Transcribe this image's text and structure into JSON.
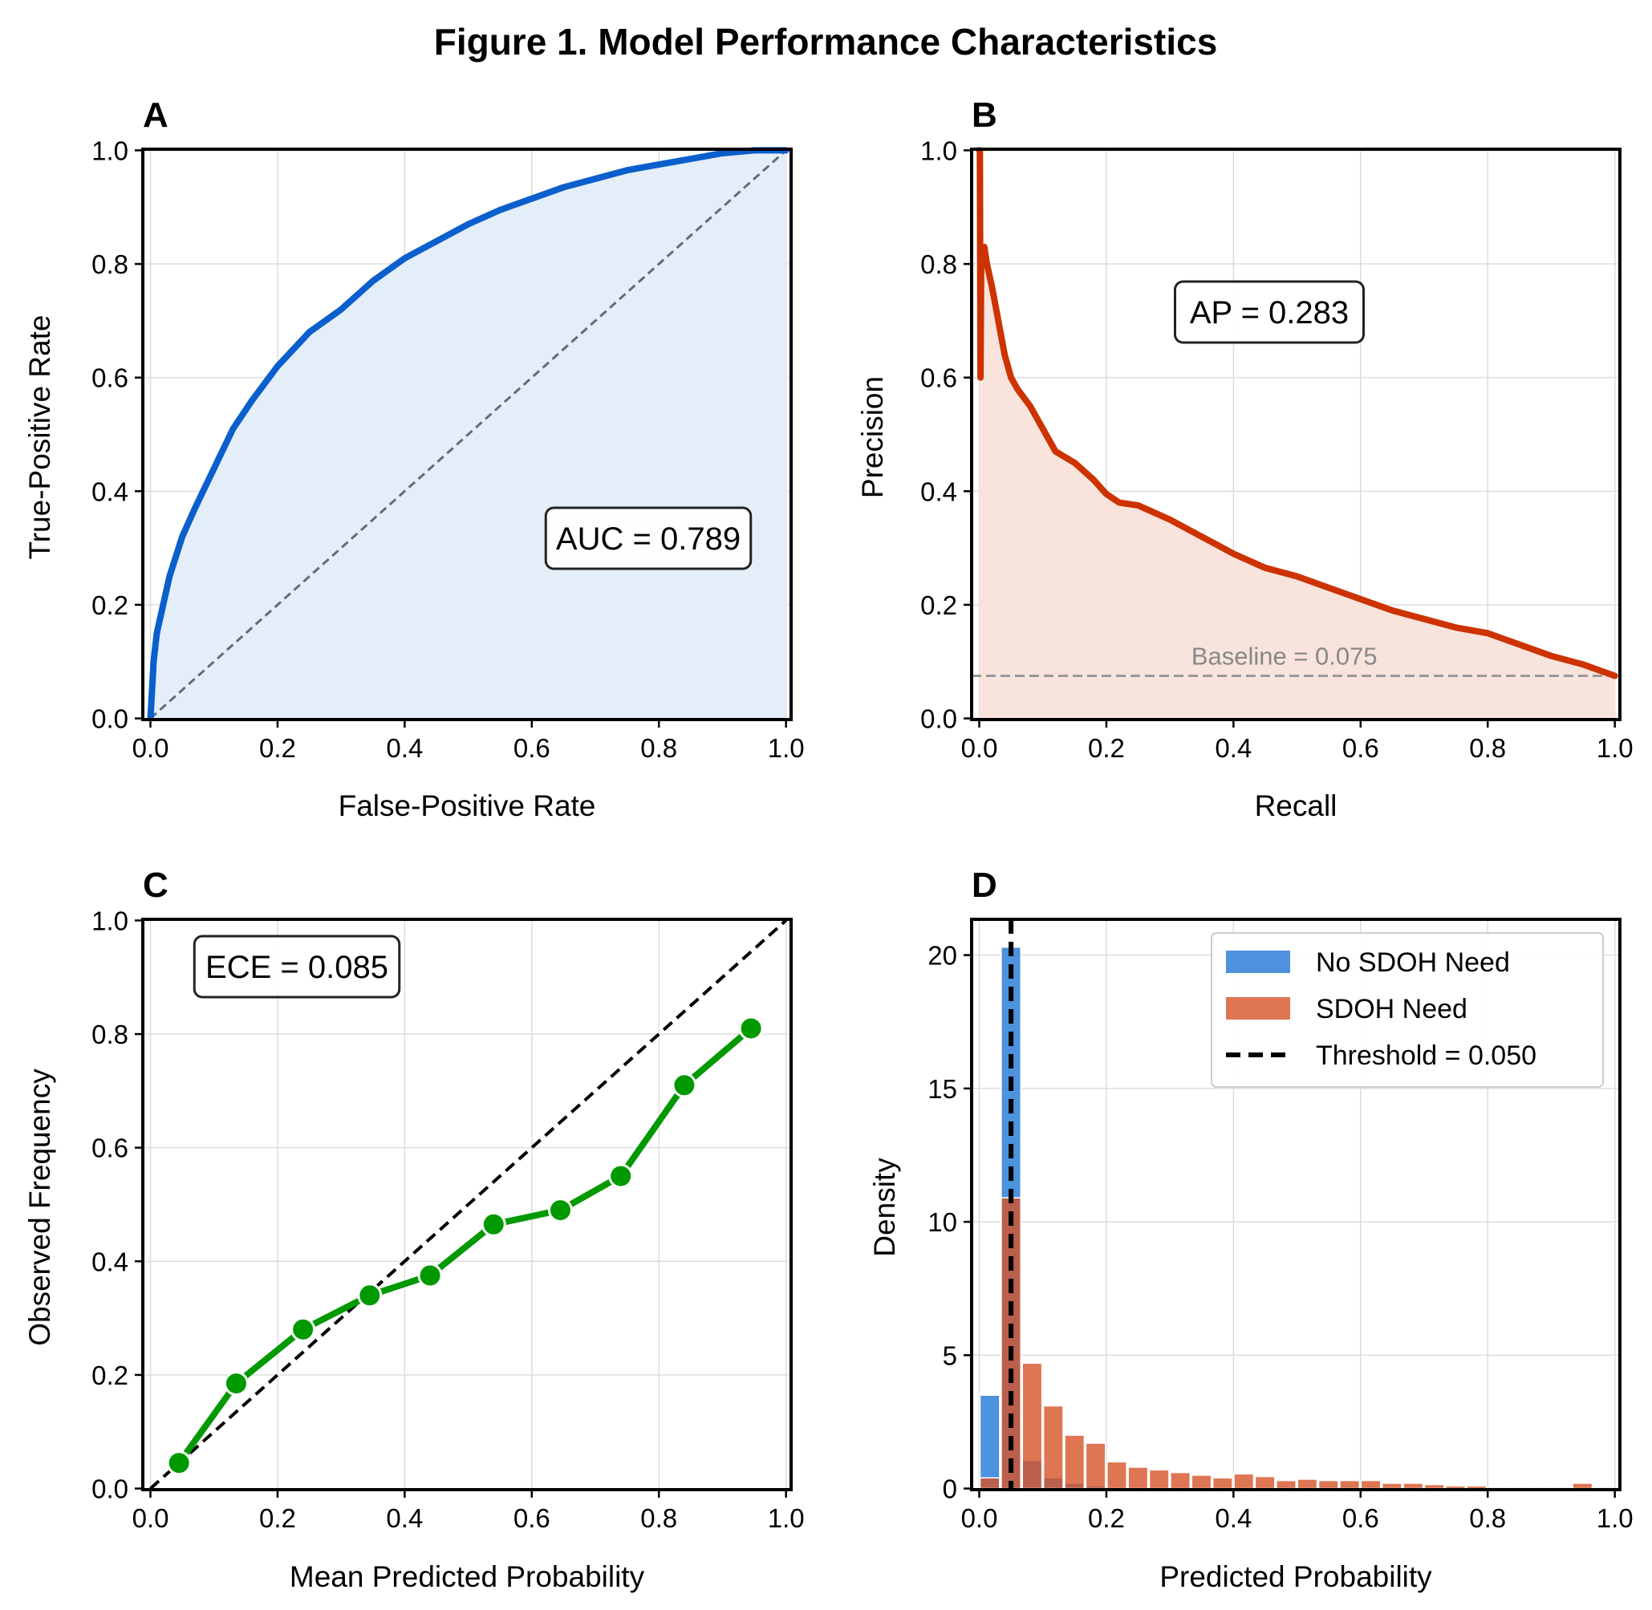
{
  "figure": {
    "title": "Figure 1. Model Performance Characteristics"
  },
  "chart_data": [
    {
      "panel": "A",
      "type": "line",
      "xlabel": "False-Positive Rate",
      "ylabel": "True-Positive Rate",
      "xlim": [
        0,
        1
      ],
      "ylim": [
        0,
        1
      ],
      "xticks": [
        "0.0",
        "0.2",
        "0.4",
        "0.6",
        "0.8",
        "1.0"
      ],
      "yticks": [
        "0.0",
        "0.2",
        "0.4",
        "0.6",
        "0.8",
        "1.0"
      ],
      "grid": true,
      "annotation": "AUC = 0.789",
      "series": [
        {
          "x": [
            0,
            0.005,
            0.01,
            0.02,
            0.03,
            0.05,
            0.07,
            0.1,
            0.13,
            0.16,
            0.2,
            0.25,
            0.3,
            0.35,
            0.4,
            0.45,
            0.5,
            0.55,
            0.6,
            0.65,
            0.7,
            0.75,
            0.8,
            0.85,
            0.9,
            0.95,
            1.0
          ],
          "y": [
            0,
            0.1,
            0.15,
            0.2,
            0.25,
            0.32,
            0.37,
            0.44,
            0.51,
            0.56,
            0.62,
            0.68,
            0.72,
            0.77,
            0.81,
            0.84,
            0.87,
            0.895,
            0.915,
            0.935,
            0.95,
            0.965,
            0.975,
            0.985,
            0.995,
            1.0,
            1.0
          ],
          "color": "#0a5fcc",
          "fill": "#e3eef9"
        }
      ],
      "reference_line": [
        [
          0,
          0
        ],
        [
          1,
          1
        ]
      ]
    },
    {
      "panel": "B",
      "type": "line",
      "xlabel": "Recall",
      "ylabel": "Precision",
      "xlim": [
        0,
        1
      ],
      "ylim": [
        0,
        1
      ],
      "xticks": [
        "0.0",
        "0.2",
        "0.4",
        "0.6",
        "0.8",
        "1.0"
      ],
      "yticks": [
        "0.0",
        "0.2",
        "0.4",
        "0.6",
        "0.8",
        "1.0"
      ],
      "grid": true,
      "annotation": "AP = 0.283",
      "baseline": {
        "value": 0.075,
        "label": "Baseline = 0.075"
      },
      "series": [
        {
          "x": [
            0,
            0.001,
            0.002,
            0.003,
            0.005,
            0.008,
            0.012,
            0.02,
            0.03,
            0.04,
            0.05,
            0.06,
            0.08,
            0.1,
            0.12,
            0.15,
            0.18,
            0.2,
            0.22,
            0.25,
            0.3,
            0.35,
            0.4,
            0.45,
            0.5,
            0.55,
            0.6,
            0.65,
            0.7,
            0.75,
            0.8,
            0.85,
            0.9,
            0.95,
            1.0
          ],
          "y": [
            1.0,
            1.0,
            0.6,
            0.8,
            0.82,
            0.83,
            0.8,
            0.76,
            0.7,
            0.64,
            0.6,
            0.58,
            0.55,
            0.51,
            0.47,
            0.45,
            0.42,
            0.395,
            0.38,
            0.375,
            0.35,
            0.32,
            0.29,
            0.265,
            0.25,
            0.23,
            0.21,
            0.19,
            0.175,
            0.16,
            0.15,
            0.13,
            0.11,
            0.095,
            0.075
          ],
          "color": "#cc3300",
          "fill": "#f8e4dd"
        }
      ]
    },
    {
      "panel": "C",
      "type": "line",
      "xlabel": "Mean Predicted Probability",
      "ylabel": "Observed Frequency",
      "xlim": [
        0,
        1
      ],
      "ylim": [
        0,
        1
      ],
      "xticks": [
        "0.0",
        "0.2",
        "0.4",
        "0.6",
        "0.8",
        "1.0"
      ],
      "yticks": [
        "0.0",
        "0.2",
        "0.4",
        "0.6",
        "0.8",
        "1.0"
      ],
      "grid": true,
      "annotation": "ECE = 0.085",
      "reference_line": [
        [
          0,
          0
        ],
        [
          1,
          1
        ]
      ],
      "series": [
        {
          "x": [
            0.045,
            0.135,
            0.24,
            0.345,
            0.44,
            0.54,
            0.645,
            0.74,
            0.84,
            0.945
          ],
          "y": [
            0.045,
            0.185,
            0.28,
            0.34,
            0.375,
            0.465,
            0.49,
            0.55,
            0.71,
            0.81
          ],
          "color": "#009900"
        }
      ]
    },
    {
      "panel": "D",
      "type": "bar",
      "xlabel": "Predicted Probability",
      "ylabel": "Density",
      "xlim": [
        0,
        1
      ],
      "ylim": [
        0,
        21.3
      ],
      "xticks": [
        "0.0",
        "0.2",
        "0.4",
        "0.6",
        "0.8",
        "1.0"
      ],
      "yticks": [
        "0",
        "5",
        "10",
        "15",
        "20"
      ],
      "grid": true,
      "legend": "top-right",
      "bin_width": 0.0333,
      "threshold": {
        "value": 0.05,
        "label": "Threshold = 0.050"
      },
      "series": [
        {
          "name": "No SDOH Need",
          "color": "#1f77d4",
          "values": [
            3.5,
            20.3,
            1.05,
            0.4,
            0.2,
            0.1,
            0.05,
            0.03,
            0.02,
            0.02,
            0.01,
            0.01,
            0,
            0,
            0,
            0,
            0,
            0,
            0,
            0,
            0,
            0,
            0,
            0,
            0,
            0,
            0,
            0,
            0,
            0
          ]
        },
        {
          "name": "SDOH Need",
          "color": "#d65328",
          "values": [
            0.4,
            10.9,
            4.7,
            3.1,
            2.0,
            1.7,
            1.0,
            0.8,
            0.7,
            0.6,
            0.5,
            0.4,
            0.55,
            0.45,
            0.3,
            0.35,
            0.3,
            0.3,
            0.3,
            0.2,
            0.2,
            0.15,
            0.1,
            0.1,
            0.05,
            0.05,
            0.05,
            0.05,
            0.2,
            0.05
          ]
        }
      ]
    }
  ]
}
